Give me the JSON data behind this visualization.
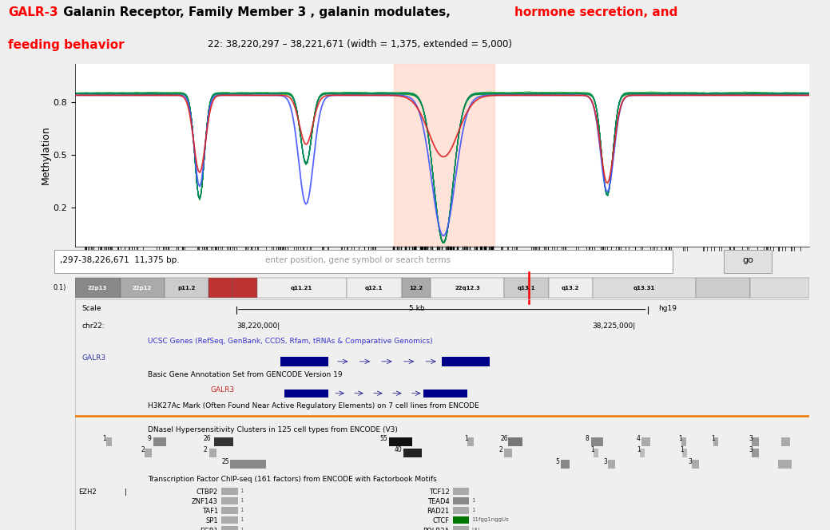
{
  "title_line1_part1": "GALR-3",
  "title_line1_part1_color": "#FF0000",
  "title_line1_part2": " Galanin Receptor, Family Member 3 , galanin modulates, ",
  "title_line1_part2_color": "#000000",
  "title_line1_part3": "hormone secretion, and",
  "title_line1_part3_color": "#FF0000",
  "title_line2_part1": "feeding behavior",
  "title_line2_part1_color": "#FF0000",
  "genomebrowser_subtitle": "22: 38,220,297 – 38,221,671 (width = 1,375, extended = 5,000)",
  "subtitle_color": "#000000",
  "highlight_color": "#FFD0C0",
  "methylation_ylabel": "Methylation",
  "searchbar_bp": ",297-38,226,671  11,375 bp.",
  "searchbar_text": "enter position, gene symbol or search terms",
  "go_button": "go",
  "ucsc_track_label": "UCSC Genes (RefSeq, GenBank, CCDS, Rfam, tRNAs & Comparative Genomics)",
  "ucsc_track_color": "#3333CC",
  "galr3_label_color": "#3333AA",
  "gencode_track_label": "Basic Gene Annotation Set from GENCODE Version 19",
  "h3k27ac_label": "H3K27Ac Mark (Often Found Near Active Regulatory Elements) on 7 cell lines from ENCODE",
  "dnase_label": "DNaseI Hypersensitivity Clusters in 125 cell types from ENCODE (V3)",
  "tf_label": "Transcription Factor ChIP-seq (161 factors) from ENCODE with Factorbook Motifs",
  "fig_bg": "#EFEFEF"
}
